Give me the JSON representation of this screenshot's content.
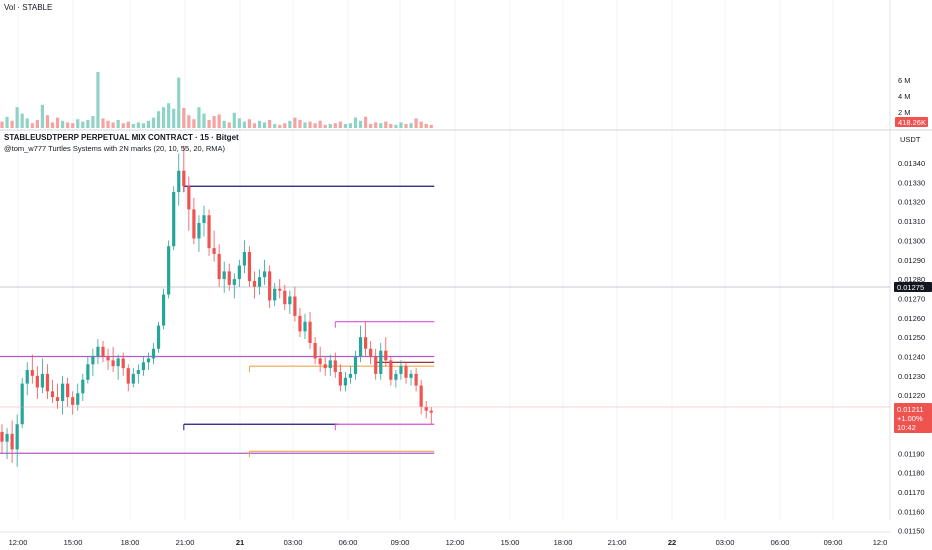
{
  "volume_pane": {
    "title": "Vol · STABLE",
    "axis_labels": [
      "6 M",
      "4 M",
      "2 M"
    ],
    "last_volume_badge": "418.26K"
  },
  "price_pane": {
    "title": "STABLEUSDTPERP PERPETUAL MIX CONTRACT · 15 · Bitget",
    "indicator": "@tom_w777 Turtles Systems with 2N marks (20, 10, 55, 20, RMA)",
    "currency": "USDT",
    "axis_labels": [
      "0.01340",
      "0.01330",
      "0.01320",
      "0.01310",
      "0.01300",
      "0.01290",
      "0.01280",
      "0.01270",
      "0.01260",
      "0.01250",
      "0.01240",
      "0.01230",
      "0.01220",
      "0.01190",
      "0.01180",
      "0.01170",
      "0.01160",
      "0.01150"
    ],
    "crosshair_price": "0.01275",
    "last_price_badge": {
      "price": "0.01211",
      "change": "+1.00%",
      "countdown": "10:42"
    }
  },
  "time_axis": [
    "12:00",
    "15:00",
    "18:00",
    "21:00",
    "21",
    "03:00",
    "06:00",
    "09:00",
    "12:00",
    "15:00",
    "18:00",
    "21:00",
    "22",
    "03:00",
    "06:00",
    "09:00",
    "12:0"
  ],
  "colors": {
    "up": "#26a69a",
    "down": "#ef5350",
    "vol_up": "#8fd3c7",
    "vol_down": "#f4a3a1",
    "navy": "#1a1a80",
    "magenta": "#d94fd9",
    "orange": "#f0a64a",
    "purple": "#b05cc0",
    "maroon": "#8b1a2e"
  },
  "chart_data": {
    "type": "candlestick",
    "title": "STABLEUSDTPERP PERPETUAL MIX CONTRACT · 15 · Bitget",
    "ylabel": "USDT",
    "ylim": [
      0.01146,
      0.0135
    ],
    "candles": [
      {
        "o": 0.01201,
        "h": 0.01205,
        "l": 0.0119,
        "c": 0.01196,
        "v": 0.8
      },
      {
        "o": 0.01196,
        "h": 0.01203,
        "l": 0.01187,
        "c": 0.012,
        "v": 1.4
      },
      {
        "o": 0.012,
        "h": 0.01207,
        "l": 0.01185,
        "c": 0.01192,
        "v": 0.9
      },
      {
        "o": 0.01192,
        "h": 0.0121,
        "l": 0.01183,
        "c": 0.01205,
        "v": 2.6
      },
      {
        "o": 0.01205,
        "h": 0.01229,
        "l": 0.01203,
        "c": 0.01226,
        "v": 1.8
      },
      {
        "o": 0.01226,
        "h": 0.01237,
        "l": 0.0122,
        "c": 0.01233,
        "v": 1.2
      },
      {
        "o": 0.01233,
        "h": 0.01241,
        "l": 0.01226,
        "c": 0.0123,
        "v": 0.6
      },
      {
        "o": 0.0123,
        "h": 0.01235,
        "l": 0.01218,
        "c": 0.01224,
        "v": 1.0
      },
      {
        "o": 0.01224,
        "h": 0.01239,
        "l": 0.01221,
        "c": 0.01231,
        "v": 2.9
      },
      {
        "o": 0.01231,
        "h": 0.01236,
        "l": 0.01218,
        "c": 0.01222,
        "v": 1.6
      },
      {
        "o": 0.01222,
        "h": 0.01228,
        "l": 0.01216,
        "c": 0.01219,
        "v": 0.7
      },
      {
        "o": 0.01219,
        "h": 0.01226,
        "l": 0.01213,
        "c": 0.01217,
        "v": 1.3
      },
      {
        "o": 0.01217,
        "h": 0.0123,
        "l": 0.0121,
        "c": 0.01226,
        "v": 0.9
      },
      {
        "o": 0.01226,
        "h": 0.01229,
        "l": 0.01214,
        "c": 0.01219,
        "v": 0.7
      },
      {
        "o": 0.01219,
        "h": 0.01222,
        "l": 0.0121,
        "c": 0.01215,
        "v": 0.6
      },
      {
        "o": 0.01215,
        "h": 0.01226,
        "l": 0.01212,
        "c": 0.01221,
        "v": 1.1
      },
      {
        "o": 0.01221,
        "h": 0.01231,
        "l": 0.01217,
        "c": 0.01228,
        "v": 0.8
      },
      {
        "o": 0.01228,
        "h": 0.0124,
        "l": 0.01226,
        "c": 0.01236,
        "v": 1.0
      },
      {
        "o": 0.01236,
        "h": 0.01244,
        "l": 0.0123,
        "c": 0.0124,
        "v": 1.5
      },
      {
        "o": 0.0124,
        "h": 0.01249,
        "l": 0.01236,
        "c": 0.01245,
        "v": 7.0
      },
      {
        "o": 0.01245,
        "h": 0.01248,
        "l": 0.01237,
        "c": 0.0124,
        "v": 1.2
      },
      {
        "o": 0.0124,
        "h": 0.01244,
        "l": 0.01233,
        "c": 0.01238,
        "v": 0.9
      },
      {
        "o": 0.01238,
        "h": 0.01245,
        "l": 0.01232,
        "c": 0.01235,
        "v": 0.7
      },
      {
        "o": 0.01235,
        "h": 0.01241,
        "l": 0.01228,
        "c": 0.01239,
        "v": 1.0
      },
      {
        "o": 0.01239,
        "h": 0.01242,
        "l": 0.0123,
        "c": 0.01234,
        "v": 0.6
      },
      {
        "o": 0.01234,
        "h": 0.01236,
        "l": 0.01222,
        "c": 0.01226,
        "v": 0.8
      },
      {
        "o": 0.01226,
        "h": 0.01234,
        "l": 0.01224,
        "c": 0.01231,
        "v": 0.5
      },
      {
        "o": 0.01231,
        "h": 0.01236,
        "l": 0.01226,
        "c": 0.01233,
        "v": 0.7
      },
      {
        "o": 0.01233,
        "h": 0.0124,
        "l": 0.0123,
        "c": 0.01237,
        "v": 0.6
      },
      {
        "o": 0.01237,
        "h": 0.01242,
        "l": 0.01233,
        "c": 0.01239,
        "v": 0.9
      },
      {
        "o": 0.01239,
        "h": 0.01247,
        "l": 0.01236,
        "c": 0.01244,
        "v": 1.3
      },
      {
        "o": 0.01244,
        "h": 0.01258,
        "l": 0.01242,
        "c": 0.01256,
        "v": 2.1
      },
      {
        "o": 0.01256,
        "h": 0.01275,
        "l": 0.01254,
        "c": 0.01272,
        "v": 2.6
      },
      {
        "o": 0.01272,
        "h": 0.013,
        "l": 0.0127,
        "c": 0.01297,
        "v": 3.1
      },
      {
        "o": 0.01297,
        "h": 0.01328,
        "l": 0.01295,
        "c": 0.01325,
        "v": 2.4
      },
      {
        "o": 0.01325,
        "h": 0.01345,
        "l": 0.01318,
        "c": 0.01336,
        "v": 6.3
      },
      {
        "o": 0.01336,
        "h": 0.01349,
        "l": 0.01325,
        "c": 0.01328,
        "v": 2.5
      },
      {
        "o": 0.01328,
        "h": 0.01333,
        "l": 0.01305,
        "c": 0.01316,
        "v": 1.6
      },
      {
        "o": 0.01316,
        "h": 0.01322,
        "l": 0.01298,
        "c": 0.01301,
        "v": 1.1
      },
      {
        "o": 0.01301,
        "h": 0.01313,
        "l": 0.01294,
        "c": 0.01309,
        "v": 2.6
      },
      {
        "o": 0.01309,
        "h": 0.01318,
        "l": 0.01302,
        "c": 0.01313,
        "v": 1.8
      },
      {
        "o": 0.01313,
        "h": 0.01316,
        "l": 0.01292,
        "c": 0.01296,
        "v": 1.0
      },
      {
        "o": 0.01296,
        "h": 0.01305,
        "l": 0.01289,
        "c": 0.01293,
        "v": 1.5
      },
      {
        "o": 0.01293,
        "h": 0.01298,
        "l": 0.01276,
        "c": 0.0128,
        "v": 1.7
      },
      {
        "o": 0.0128,
        "h": 0.01289,
        "l": 0.01273,
        "c": 0.01284,
        "v": 0.9
      },
      {
        "o": 0.01284,
        "h": 0.01288,
        "l": 0.01274,
        "c": 0.01277,
        "v": 0.7
      },
      {
        "o": 0.01277,
        "h": 0.01283,
        "l": 0.0127,
        "c": 0.0128,
        "v": 1.9
      },
      {
        "o": 0.0128,
        "h": 0.0129,
        "l": 0.01276,
        "c": 0.01287,
        "v": 1.2
      },
      {
        "o": 0.01287,
        "h": 0.013,
        "l": 0.01283,
        "c": 0.01294,
        "v": 0.8
      },
      {
        "o": 0.01294,
        "h": 0.01297,
        "l": 0.01276,
        "c": 0.01279,
        "v": 1.1
      },
      {
        "o": 0.01279,
        "h": 0.01284,
        "l": 0.0127,
        "c": 0.01276,
        "v": 0.6
      },
      {
        "o": 0.01276,
        "h": 0.01285,
        "l": 0.01272,
        "c": 0.01281,
        "v": 0.9
      },
      {
        "o": 0.01281,
        "h": 0.0129,
        "l": 0.01277,
        "c": 0.01284,
        "v": 0.7
      },
      {
        "o": 0.01284,
        "h": 0.01287,
        "l": 0.01265,
        "c": 0.01269,
        "v": 1.0
      },
      {
        "o": 0.01269,
        "h": 0.01278,
        "l": 0.01266,
        "c": 0.01275,
        "v": 0.5
      },
      {
        "o": 0.01275,
        "h": 0.0128,
        "l": 0.0127,
        "c": 0.01274,
        "v": 0.4
      },
      {
        "o": 0.01274,
        "h": 0.01277,
        "l": 0.01264,
        "c": 0.01267,
        "v": 0.6
      },
      {
        "o": 0.01267,
        "h": 0.01274,
        "l": 0.01262,
        "c": 0.01271,
        "v": 0.9
      },
      {
        "o": 0.01271,
        "h": 0.01276,
        "l": 0.01258,
        "c": 0.01261,
        "v": 1.3
      },
      {
        "o": 0.01261,
        "h": 0.01265,
        "l": 0.0125,
        "c": 0.01253,
        "v": 1.0
      },
      {
        "o": 0.01253,
        "h": 0.01262,
        "l": 0.01249,
        "c": 0.01258,
        "v": 0.7
      },
      {
        "o": 0.01258,
        "h": 0.01263,
        "l": 0.01244,
        "c": 0.01247,
        "v": 0.8
      },
      {
        "o": 0.01247,
        "h": 0.0125,
        "l": 0.01236,
        "c": 0.01239,
        "v": 0.6
      },
      {
        "o": 0.01239,
        "h": 0.01245,
        "l": 0.01232,
        "c": 0.01236,
        "v": 0.9
      },
      {
        "o": 0.01236,
        "h": 0.0124,
        "l": 0.0123,
        "c": 0.01234,
        "v": 0.4
      },
      {
        "o": 0.01234,
        "h": 0.01241,
        "l": 0.0123,
        "c": 0.01238,
        "v": 0.5
      },
      {
        "o": 0.01238,
        "h": 0.01242,
        "l": 0.01229,
        "c": 0.01232,
        "v": 0.6
      },
      {
        "o": 0.01232,
        "h": 0.01236,
        "l": 0.01222,
        "c": 0.01225,
        "v": 0.8
      },
      {
        "o": 0.01225,
        "h": 0.01232,
        "l": 0.01222,
        "c": 0.01229,
        "v": 0.5
      },
      {
        "o": 0.01229,
        "h": 0.01235,
        "l": 0.01226,
        "c": 0.01231,
        "v": 0.6
      },
      {
        "o": 0.01231,
        "h": 0.01243,
        "l": 0.01228,
        "c": 0.0124,
        "v": 1.3
      },
      {
        "o": 0.0124,
        "h": 0.01256,
        "l": 0.01237,
        "c": 0.0125,
        "v": 0.9
      },
      {
        "o": 0.0125,
        "h": 0.01258,
        "l": 0.0124,
        "c": 0.01244,
        "v": 1.4
      },
      {
        "o": 0.01244,
        "h": 0.01248,
        "l": 0.01236,
        "c": 0.0124,
        "v": 0.5
      },
      {
        "o": 0.0124,
        "h": 0.01244,
        "l": 0.01228,
        "c": 0.01231,
        "v": 0.7
      },
      {
        "o": 0.01231,
        "h": 0.01247,
        "l": 0.01228,
        "c": 0.01243,
        "v": 0.6
      },
      {
        "o": 0.01243,
        "h": 0.0125,
        "l": 0.01235,
        "c": 0.01238,
        "v": 0.8
      },
      {
        "o": 0.01238,
        "h": 0.0124,
        "l": 0.01225,
        "c": 0.01228,
        "v": 0.5
      },
      {
        "o": 0.01228,
        "h": 0.01233,
        "l": 0.01224,
        "c": 0.01231,
        "v": 0.4
      },
      {
        "o": 0.01231,
        "h": 0.01238,
        "l": 0.01228,
        "c": 0.01235,
        "v": 0.7
      },
      {
        "o": 0.01235,
        "h": 0.01237,
        "l": 0.01226,
        "c": 0.01229,
        "v": 0.5
      },
      {
        "o": 0.01229,
        "h": 0.01233,
        "l": 0.01225,
        "c": 0.01231,
        "v": 0.6
      },
      {
        "o": 0.01231,
        "h": 0.01234,
        "l": 0.01222,
        "c": 0.01225,
        "v": 1.2
      },
      {
        "o": 0.01225,
        "h": 0.01228,
        "l": 0.0121,
        "c": 0.01214,
        "v": 0.8
      },
      {
        "o": 0.01214,
        "h": 0.01217,
        "l": 0.01208,
        "c": 0.01212,
        "v": 0.5
      },
      {
        "o": 0.01212,
        "h": 0.01214,
        "l": 0.01205,
        "c": 0.01211,
        "v": 0.4
      }
    ],
    "horizontal_levels": [
      {
        "price": 0.01328,
        "from": 36,
        "to": 85,
        "color": "navy"
      },
      {
        "price": 0.01258,
        "from": 66,
        "to": 85,
        "color": "magenta"
      },
      {
        "price": 0.0124,
        "from": 0,
        "to": 85,
        "color": "purple"
      },
      {
        "price": 0.01237,
        "from": 74,
        "to": 85,
        "color": "maroon"
      },
      {
        "price": 0.01235,
        "from": 49,
        "to": 85,
        "color": "orange"
      },
      {
        "price": 0.01205,
        "from": 36,
        "to": 66,
        "color": "navy"
      },
      {
        "price": 0.01205,
        "from": 66,
        "to": 85,
        "color": "magenta"
      },
      {
        "price": 0.0119,
        "from": 0,
        "to": 85,
        "color": "purple"
      },
      {
        "price": 0.01191,
        "from": 49,
        "to": 85,
        "color": "orange"
      }
    ]
  }
}
